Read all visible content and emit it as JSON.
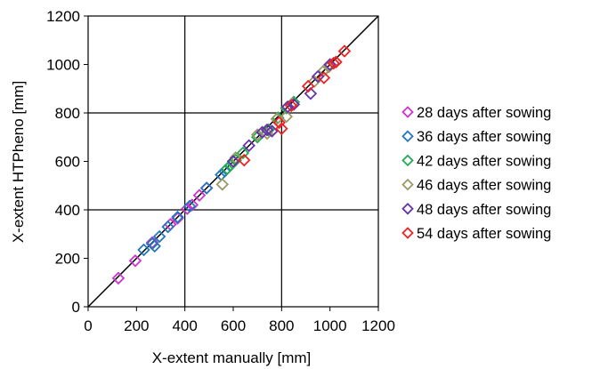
{
  "chart_data": {
    "type": "scatter",
    "xlabel": "X-extent manually [mm]",
    "ylabel": "X-extent HTPheno [mm]",
    "xlim": [
      0,
      1200
    ],
    "ylim": [
      0,
      1200
    ],
    "x_ticks": [
      "0",
      "200",
      "400",
      "600",
      "800",
      "1000",
      "1200"
    ],
    "y_ticks": [
      "0",
      "200",
      "400",
      "600",
      "800",
      "1000",
      "1200"
    ],
    "grid": "major lines every 400 mm",
    "reference_line": "y = x",
    "legend_position": "right",
    "marker": "diamond",
    "series": [
      {
        "name": "28 days after sowing",
        "color": "#cc33cc",
        "x": [
          125,
          195,
          265,
          340,
          370,
          410,
          430,
          460,
          490
        ],
        "y": [
          118,
          190,
          265,
          340,
          365,
          405,
          420,
          460,
          490
        ]
      },
      {
        "name": "36 days after sowing",
        "color": "#2277bb",
        "x": [
          230,
          265,
          275,
          295,
          330,
          370,
          420,
          490,
          550,
          565
        ],
        "y": [
          235,
          260,
          250,
          290,
          330,
          370,
          415,
          490,
          545,
          560
        ]
      },
      {
        "name": "42 days after sowing",
        "color": "#22aa55",
        "x": [
          575,
          590,
          600,
          610,
          640,
          700,
          745,
          785,
          820,
          850
        ],
        "y": [
          570,
          585,
          600,
          605,
          635,
          700,
          730,
          780,
          820,
          845
        ]
      },
      {
        "name": "46 days after sowing",
        "color": "#999966",
        "x": [
          555,
          610,
          700,
          740,
          780,
          820,
          845,
          935,
          975,
          995
        ],
        "y": [
          505,
          615,
          710,
          715,
          775,
          785,
          840,
          930,
          975,
          990
        ]
      },
      {
        "name": "48 days after sowing",
        "color": "#6633aa",
        "x": [
          600,
          665,
          720,
          740,
          760,
          825,
          850,
          920,
          950,
          1000
        ],
        "y": [
          600,
          665,
          720,
          730,
          725,
          825,
          835,
          880,
          950,
          1000
        ]
      },
      {
        "name": "54 days after sowing",
        "color": "#ee2222",
        "x": [
          645,
          790,
          800,
          840,
          910,
          975,
          1015,
          1025,
          1060
        ],
        "y": [
          605,
          760,
          735,
          830,
          910,
          945,
          1005,
          1010,
          1055
        ]
      }
    ]
  }
}
